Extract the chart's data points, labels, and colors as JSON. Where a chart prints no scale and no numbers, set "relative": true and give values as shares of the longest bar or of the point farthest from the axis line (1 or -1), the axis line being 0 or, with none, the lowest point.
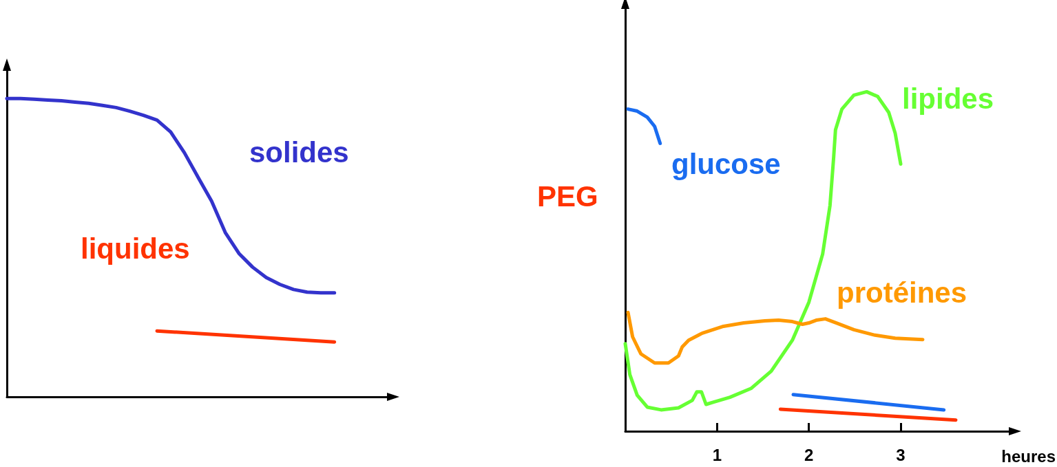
{
  "chart_data": [
    {
      "type": "line",
      "relative": true,
      "tick_labels": false,
      "marker": "none",
      "line_style": "solid",
      "grid": false,
      "legend": false,
      "categories": [
        null,
        null,
        null,
        null,
        null,
        null,
        null,
        null,
        null,
        null,
        null,
        null,
        null,
        null,
        null,
        null,
        null,
        null,
        null,
        null,
        null,
        null,
        null,
        null,
        null,
        null,
        null,
        null,
        null
      ],
      "series": [
        {
          "name": "solides",
          "color": "#3333cc",
          "values": [
            1.0,
            1.0,
            0.998,
            0.995,
            0.993,
            0.988,
            0.984,
            0.977,
            0.97,
            0.958,
            0.944,
            0.928,
            0.888,
            0.819,
            0.737,
            0.656,
            0.551,
            0.481,
            0.435,
            0.4,
            0.377,
            0.36,
            0.351,
            0.349,
            0.349,
            null,
            null,
            null,
            null
          ]
        },
        {
          "name": "liquides",
          "color": "#ff3300",
          "values": [
            null,
            null,
            null,
            null,
            null,
            null,
            null,
            null,
            null,
            null,
            null,
            0.221,
            null,
            null,
            null,
            null,
            null,
            null,
            null,
            null,
            null,
            null,
            null,
            null,
            0.184,
            null,
            null,
            null,
            null
          ]
        }
      ]
    },
    {
      "type": "line",
      "relative": true,
      "tick_labels": "x",
      "marker": "none",
      "line_style": "solid",
      "grid": false,
      "legend": false,
      "xlabel": "heures",
      "xlim": [
        0,
        4.2
      ],
      "xticks": [
        1,
        2,
        3
      ],
      "series": [
        {
          "name": "glucose",
          "color": "#1a6cf0",
          "x": [
            0.03,
            0.13,
            0.24,
            0.32,
            0.38
          ],
          "values": [
            0.949,
            0.943,
            0.925,
            0.898,
            0.848
          ]
        },
        {
          "color": "#1a6cf0",
          "x": [
            1.83,
            3.47
          ],
          "values": [
            0.108,
            0.063
          ]
        },
        {
          "name": "PEG",
          "color": "#ff3300",
          "x": [
            1.69,
            3.6
          ],
          "values": [
            0.065,
            0.033
          ]
        },
        {
          "name": "lipides",
          "color": "#66ff33",
          "x": [
            0,
            0.05,
            0.13,
            0.24,
            0.39,
            0.58,
            0.73,
            0.78,
            0.83,
            0.88,
            0.95,
            1.14,
            1.37,
            1.59,
            1.82,
            2.0,
            2.15,
            2.23,
            2.27,
            2.29,
            2.36,
            2.49,
            2.63,
            2.75,
            2.87,
            2.94,
            3.0
          ],
          "values": [
            0.258,
            0.167,
            0.106,
            0.071,
            0.063,
            0.069,
            0.091,
            0.116,
            0.116,
            0.079,
            0.085,
            0.1,
            0.126,
            0.177,
            0.268,
            0.38,
            0.522,
            0.665,
            0.807,
            0.888,
            0.949,
            0.99,
            1.0,
            0.986,
            0.939,
            0.878,
            0.787
          ]
        },
        {
          "name": "protéines",
          "color": "#ff9900",
          "x": [
            0.03,
            0.08,
            0.17,
            0.32,
            0.47,
            0.58,
            0.62,
            0.69,
            0.84,
            1.07,
            1.29,
            1.52,
            1.67,
            1.82,
            1.93,
            2.0,
            2.08,
            2.18,
            2.3,
            2.49,
            2.72,
            2.94,
            3.24
          ],
          "values": [
            0.35,
            0.278,
            0.228,
            0.201,
            0.201,
            0.222,
            0.248,
            0.268,
            0.289,
            0.309,
            0.319,
            0.325,
            0.327,
            0.323,
            0.315,
            0.319,
            0.327,
            0.331,
            0.319,
            0.299,
            0.283,
            0.274,
            0.27
          ]
        }
      ]
    }
  ]
}
